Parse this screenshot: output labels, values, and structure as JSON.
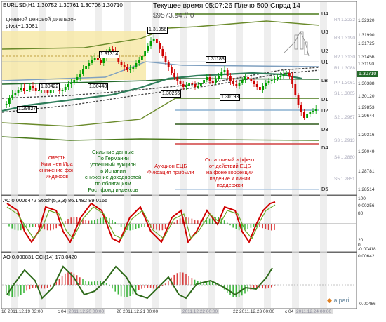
{
  "header": {
    "symbol_line": "EURUSD,H1  1.30752 1.30761 1.30706 1.30710",
    "indicator_label": "дневной ценовой диапазон",
    "pivot_label": "pivot=1.3061",
    "server_time": "Текущее время 05:07:26 Плечо 500 Спрэд 14",
    "balance": "$9573.94   // 0"
  },
  "price_boxes": [
    "1.31956",
    "1.31314",
    "1.31183",
    "1.30448",
    "1.30422",
    "1.30255",
    "1.30193",
    "1.29827"
  ],
  "levels": {
    "right": [
      "U4",
      "U3",
      "U2",
      "U1",
      "LB",
      "D1",
      "D2",
      "D3",
      "D4",
      "D5"
    ],
    "pivot_names": [
      "R4 1.3232",
      "R3 1.3190",
      "R2 1.3130",
      "R1 1.3088",
      "PP 1.3061",
      "S1 1.3005",
      "S2 1.2967",
      "S3 1.2913",
      "S4 1.2880",
      "S5 1.2851"
    ]
  },
  "price_axis": [
    "1.32320",
    "1.31990",
    "1.31725",
    "1.31456",
    "1.31190",
    "1.30922",
    "1.30710",
    "1.30388",
    "1.30120",
    "1.29853",
    "1.29644",
    "1.29316",
    "1.29049",
    "1.28781",
    "1.28514"
  ],
  "current_price": "1.30710",
  "annotations": [
    {
      "text": "смерть\nКим Чен Ира\nснижение фон\nиндексов",
      "color": "#d00000"
    },
    {
      "text": "Сильные данные\nПо Германии\nуспешный аукцион\nв Испании\nснижение доходностей\nпо облигациям\nРост фонд индексов",
      "color": "#006400"
    },
    {
      "text": "Аукцион ЕЦБ\nФиксация прибыли",
      "color": "#d00000"
    },
    {
      "text": "Остаточный эффект\nот действий ЕЦБ\nна фоне коррекции\nпадение к линии\nподдержки",
      "color": "#d00000"
    }
  ],
  "ac_panel": {
    "label": "AC 0.0006472  Stoch(5,3,3) 86.1482 89.0165",
    "axis": [
      "100",
      "0.00256",
      "80",
      "20",
      "0",
      "-0.00418"
    ]
  },
  "ao_panel": {
    "label": "AO 0.000831  CCI(14) 173.0420",
    "axis": [
      "0.00642",
      "-0.00466"
    ]
  },
  "time_axis": [
    "16 2011.12.19 03:00",
    "c 04",
    "2011.12.20 00:00",
    "20 2011.12.21 00:00",
    "2011.12.22 00:00",
    "22 2011.12.23 00:00",
    "c 04",
    "2011.12.24 00:00"
  ],
  "brand": "alpari",
  "colors": {
    "bull": "#00a000",
    "bear": "#d00000",
    "ma": "#2e7d5a",
    "pivot_green": "#4a7a1a",
    "band": "#f6e7a3"
  }
}
